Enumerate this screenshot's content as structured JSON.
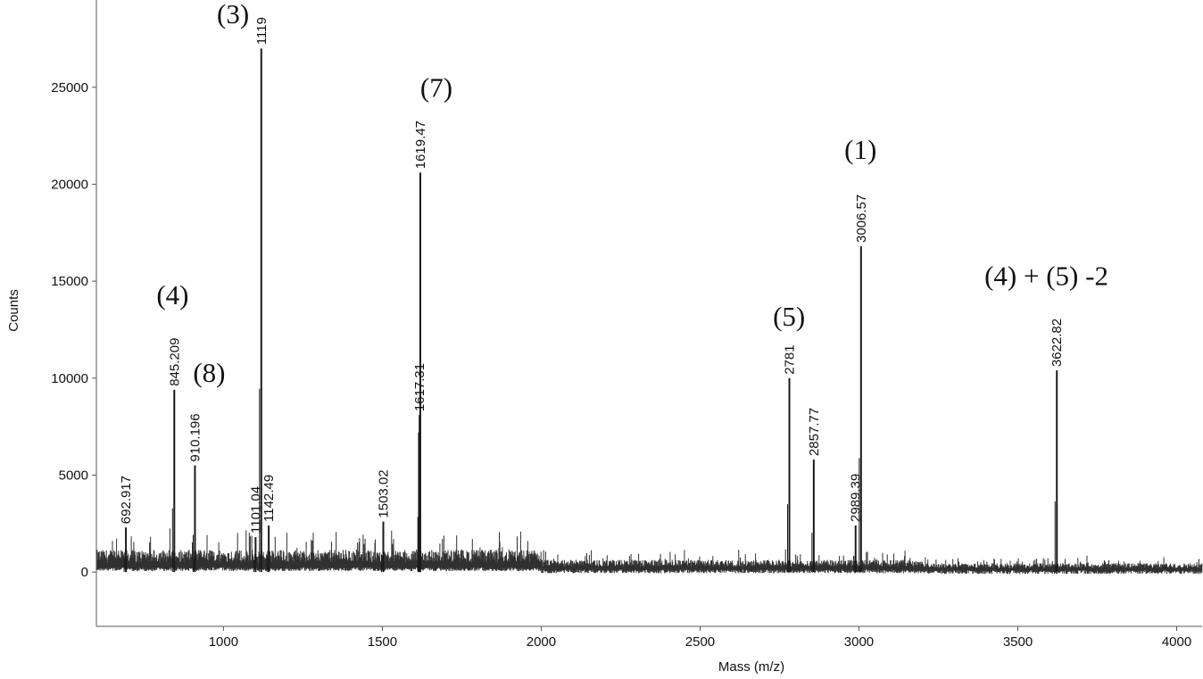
{
  "chart_data": {
    "type": "line",
    "xlabel": "Mass (m/z)",
    "ylabel": "Counts",
    "xlim": [
      600,
      4080
    ],
    "ylim": [
      -2800,
      29500
    ],
    "x_ticks": [
      1000,
      1500,
      2000,
      2500,
      3000,
      3500,
      4000
    ],
    "y_ticks": [
      0,
      5000,
      10000,
      15000,
      20000,
      25000
    ],
    "grid": false,
    "legend": "none",
    "line_color": "#1a1a1a",
    "peaks": [
      {
        "x": 692.917,
        "y": 2300,
        "label": "692.917"
      },
      {
        "x": 845.209,
        "y": 9400,
        "label": "845.209"
      },
      {
        "x": 910.196,
        "y": 5500,
        "label": "910.196"
      },
      {
        "x": 1101.04,
        "y": 1800,
        "label": "1101.04"
      },
      {
        "x": 1119,
        "y": 27000,
        "label": "1119"
      },
      {
        "x": 1142.49,
        "y": 2400,
        "label": "1142.49"
      },
      {
        "x": 1503.02,
        "y": 2600,
        "label": "1503.02"
      },
      {
        "x": 1617.31,
        "y": 8100,
        "label": "1617.31"
      },
      {
        "x": 1619.47,
        "y": 20600,
        "label": "1619.47"
      },
      {
        "x": 2781,
        "y": 10000,
        "label": "2781"
      },
      {
        "x": 2857.77,
        "y": 5800,
        "label": "2857.77"
      },
      {
        "x": 2989.39,
        "y": 2400,
        "label": "2989.39"
      },
      {
        "x": 3006.57,
        "y": 16800,
        "label": "3006.57"
      },
      {
        "x": 3622.82,
        "y": 10400,
        "label": "3622.82"
      }
    ],
    "annotations": [
      {
        "text": "(3)",
        "x": 1030,
        "y": 28300
      },
      {
        "text": "(4)",
        "x": 840,
        "y": 13800
      },
      {
        "text": "(8)",
        "x": 955,
        "y": 9800
      },
      {
        "text": "(7)",
        "x": 1670,
        "y": 24500
      },
      {
        "text": "(5)",
        "x": 2780,
        "y": 12700
      },
      {
        "text": "(1)",
        "x": 3005,
        "y": 21300
      },
      {
        "text": "(4) + (5) -2",
        "x": 3590,
        "y": 14800
      }
    ]
  }
}
